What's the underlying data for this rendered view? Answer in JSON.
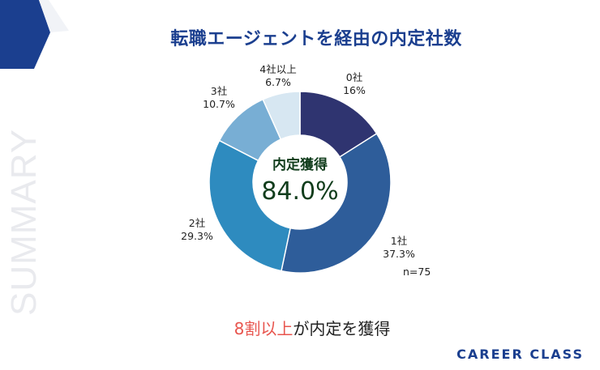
{
  "side_word": "SUMMARY",
  "brand": "CAREER CLASS",
  "caption": {
    "highlight": "8割以上",
    "rest": "が内定を獲得"
  },
  "colors": {
    "accent": "#1b3f8f",
    "highlight": "#e8554e",
    "slices": [
      "#2f3470",
      "#2e5d9a",
      "#2e8bbf",
      "#78aed4",
      "#d7e7f2"
    ]
  },
  "chart_data": {
    "type": "pie",
    "title": "転職エージェントを経由の内定社数",
    "center_title": "内定獲得",
    "center_value": "84.0%",
    "note": "n=75",
    "slices": [
      {
        "label": "0社",
        "value": 16,
        "display": "16%"
      },
      {
        "label": "1社",
        "value": 37.3,
        "display": "37.3%"
      },
      {
        "label": "2社",
        "value": 29.3,
        "display": "29.3%"
      },
      {
        "label": "3社",
        "value": 10.7,
        "display": "10.7%"
      },
      {
        "label": "4社以上",
        "value": 6.7,
        "display": "6.7%"
      }
    ]
  }
}
